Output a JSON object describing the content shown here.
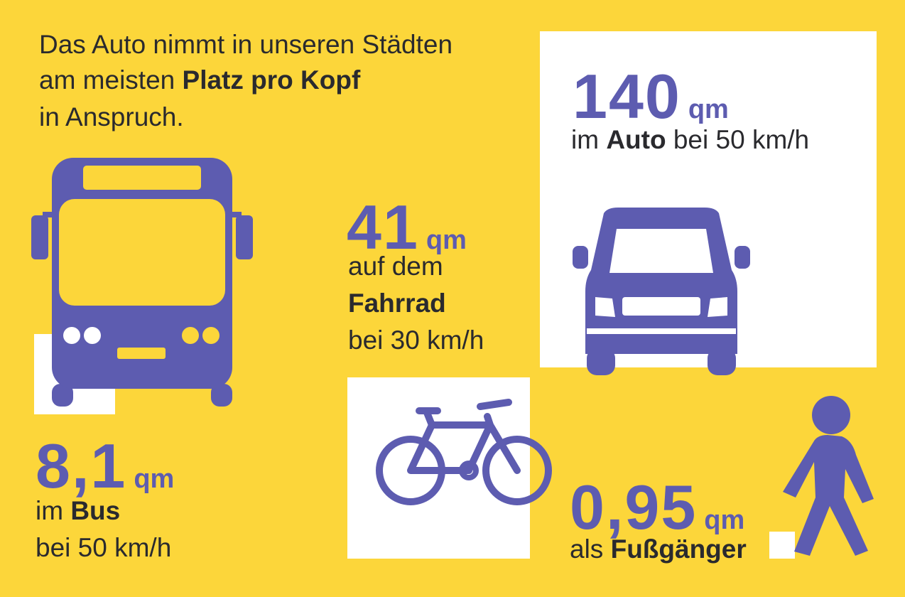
{
  "headline": {
    "line1": "Das Auto nimmt in unseren Städten",
    "line2": "am meisten",
    "emphasis": "Platz pro Kopf",
    "line3": "in Anspruch."
  },
  "items": [
    {
      "value": "140",
      "unit": "qm",
      "pre": "im",
      "bold": "Auto",
      "post": "bei 50 km/h"
    },
    {
      "value": "41",
      "unit": "qm",
      "pre": "auf dem",
      "bold": "Fahrrad",
      "post": "bei 30 km/h"
    },
    {
      "value": "8,1",
      "unit": "qm",
      "pre": "im",
      "bold": "Bus",
      "post": "bei 50 km/h"
    },
    {
      "value": "0,95",
      "unit": "qm",
      "pre": "als",
      "bold": "Fußgänger"
    }
  ]
}
